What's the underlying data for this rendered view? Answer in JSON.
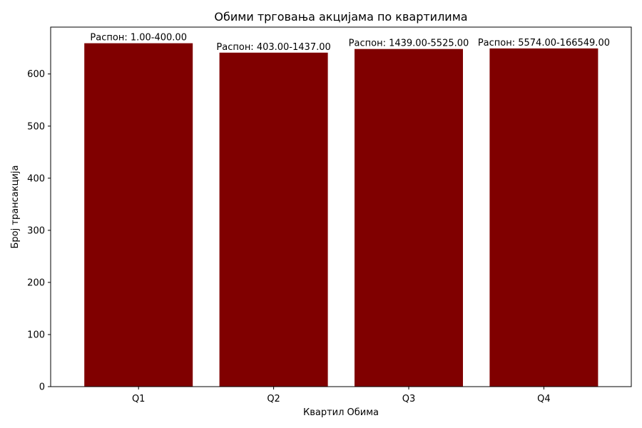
{
  "chart_data": {
    "type": "bar",
    "title": "Обими трговања акцијама по квартилима",
    "xlabel": "Квартил Обима",
    "ylabel": "Број трансакција",
    "categories": [
      "Q1",
      "Q2",
      "Q3",
      "Q4"
    ],
    "values": [
      659,
      641,
      648,
      649
    ],
    "data_labels": [
      "Распон: 1.00-400.00",
      "Распон: 403.00-1437.00",
      "Распон: 1439.00-5525.00",
      "Распон: 5574.00-166549.00"
    ],
    "ylim": [
      0,
      690
    ],
    "yticks": [
      0,
      100,
      200,
      300,
      400,
      500,
      600
    ],
    "bar_color": "#800000",
    "grid": false,
    "legend": "none"
  }
}
